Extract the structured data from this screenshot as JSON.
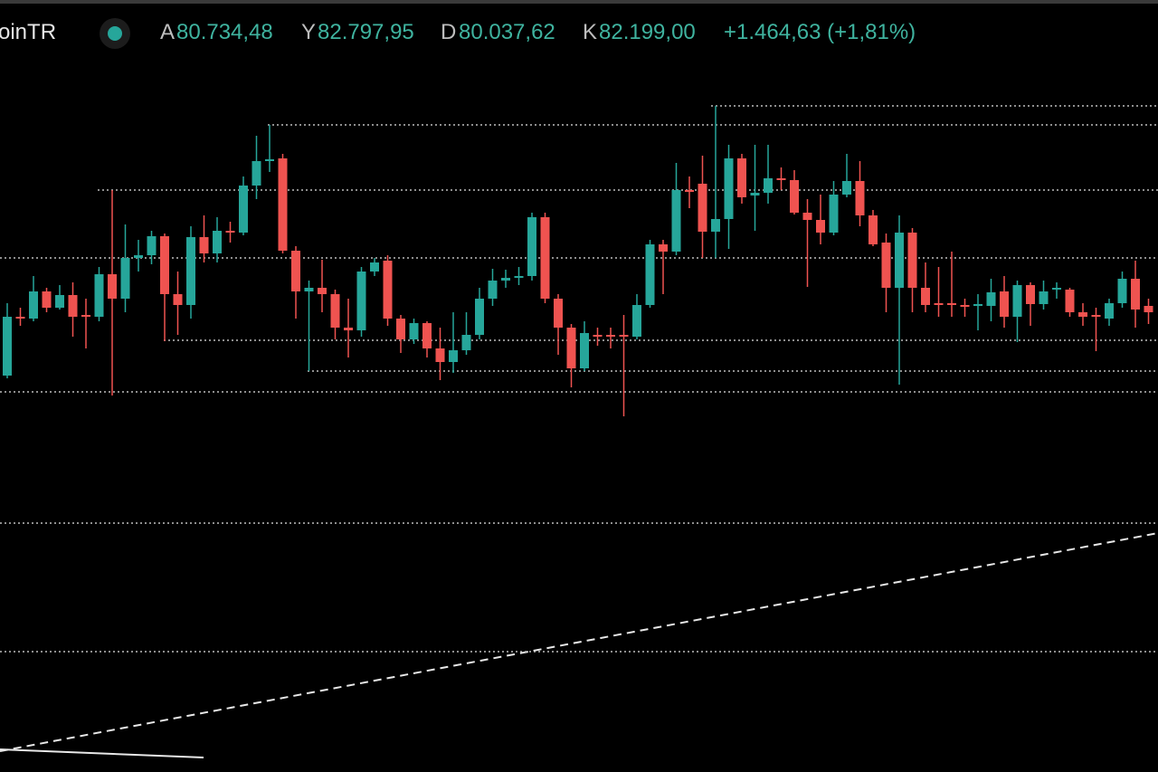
{
  "header": {
    "symbol": "oinTR",
    "fields": [
      {
        "label": "A",
        "value": "80.734,48"
      },
      {
        "label": "Y",
        "value": "82.797,95"
      },
      {
        "label": "D",
        "value": "80.037,62"
      },
      {
        "label": "K",
        "value": "82.199,00"
      }
    ],
    "change": "+1.464,63 (+1,81%)"
  },
  "chart_data": {
    "type": "candlestick",
    "ylim": [
      77470,
      86000
    ],
    "up_color": "#26a69a",
    "down_color": "#ef5350",
    "levels": [
      84830,
      84620,
      83900,
      83150,
      82240,
      81900,
      81670,
      80220,
      78800
    ],
    "open": [
      81850,
      82500,
      82480,
      82780,
      82600,
      82740,
      82520,
      82500,
      82970,
      82700,
      83150,
      83180,
      83390,
      82750,
      82630,
      83380,
      83200,
      83450,
      83430,
      83950,
      84220,
      84250,
      83230,
      82780,
      82820,
      82750,
      82380,
      82350,
      83000,
      83120,
      82480,
      82250,
      82430,
      82150,
      82000,
      82130,
      82300,
      82700,
      82900,
      82930,
      82950,
      83600,
      82700,
      82380,
      81930,
      82300,
      82300,
      82300,
      82280,
      82630,
      83300,
      83220,
      83900,
      83970,
      83440,
      83580,
      84250,
      83840,
      83870,
      84030,
      84010,
      83650,
      83570,
      83430,
      83850,
      84000,
      83620,
      83320,
      82820,
      83430,
      82820,
      82650,
      82650,
      82630,
      82620,
      82620,
      82780,
      82500,
      82850,
      82640,
      82800,
      82800,
      82550,
      82520,
      82480,
      82650,
      82920,
      82620
    ],
    "high": [
      82650,
      82600,
      82950,
      82820,
      82850,
      82880,
      82700,
      83050,
      83900,
      83520,
      83350,
      83450,
      83420,
      83000,
      83500,
      83620,
      83600,
      83550,
      84050,
      84500,
      84620,
      84300,
      83280,
      82900,
      83130,
      82800,
      82700,
      83050,
      83150,
      83180,
      82520,
      82480,
      82450,
      82380,
      82550,
      82550,
      82820,
      83030,
      83020,
      83050,
      83650,
      83650,
      82750,
      82420,
      82450,
      82380,
      82380,
      82520,
      82750,
      83350,
      83350,
      84200,
      84050,
      84280,
      84830,
      84400,
      84300,
      84400,
      84400,
      84150,
      84120,
      83800,
      83850,
      84000,
      84300,
      84220,
      83680,
      83420,
      83620,
      83480,
      83100,
      83050,
      83220,
      82700,
      82750,
      82920,
      82950,
      82900,
      82880,
      82900,
      82880,
      82820,
      82650,
      82600,
      82700,
      83000,
      83120,
      82700
    ],
    "low": [
      81820,
      82400,
      82450,
      82550,
      82580,
      82280,
      82150,
      82450,
      81630,
      82550,
      83000,
      83080,
      82230,
      82300,
      82480,
      83100,
      83100,
      83320,
      83400,
      83800,
      84100,
      83200,
      82480,
      81900,
      82550,
      82250,
      82050,
      82280,
      82950,
      82400,
      82100,
      82200,
      82050,
      81800,
      81880,
      82080,
      82250,
      82620,
      82820,
      82850,
      82900,
      82650,
      82080,
      81720,
      81900,
      82180,
      82150,
      81400,
      82250,
      82600,
      82750,
      83180,
      83700,
      83150,
      83150,
      83250,
      83750,
      83450,
      83750,
      83900,
      83630,
      82830,
      83300,
      83400,
      83820,
      83500,
      83280,
      82550,
      81750,
      82550,
      82550,
      82500,
      82500,
      82500,
      82350,
      82450,
      82380,
      82220,
      82400,
      82580,
      82700,
      82500,
      82400,
      82120,
      82400,
      82600,
      82380,
      82420
    ],
    "close": [
      82500,
      82480,
      82780,
      82600,
      82740,
      82500,
      82500,
      82970,
      82700,
      83150,
      83180,
      83390,
      82750,
      82630,
      83380,
      83200,
      83450,
      83430,
      83950,
      84220,
      84240,
      83230,
      82780,
      82820,
      82750,
      82380,
      82350,
      83000,
      83100,
      82480,
      82250,
      82430,
      82150,
      82000,
      82130,
      82300,
      82700,
      82900,
      82930,
      82950,
      83600,
      82700,
      82380,
      81930,
      82320,
      82280,
      82280,
      82280,
      82630,
      83300,
      83220,
      83900,
      83880,
      83440,
      83580,
      84250,
      83820,
      83870,
      84030,
      84010,
      83650,
      83570,
      83430,
      83850,
      84000,
      83620,
      83300,
      82820,
      83430,
      82820,
      82630,
      82630,
      82630,
      82610,
      82640,
      82770,
      82500,
      82850,
      82640,
      82780,
      82820,
      82550,
      82500,
      82500,
      82650,
      82920,
      82580,
      82550
    ]
  }
}
